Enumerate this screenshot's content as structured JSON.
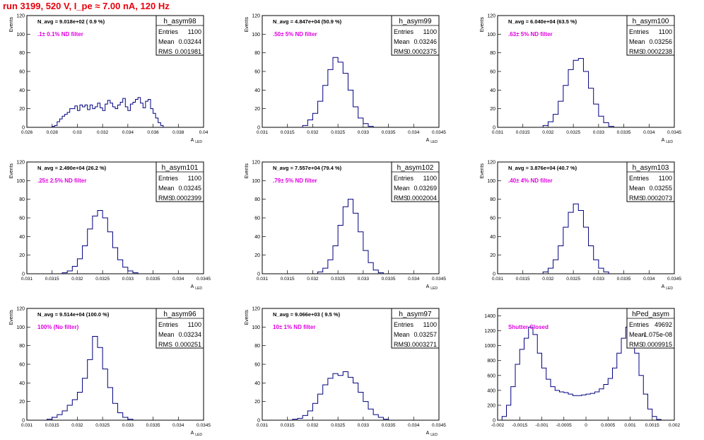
{
  "page": {
    "title": "run 3199,   520 V, I_pe ≈ 7.00 nA, 120 Hz",
    "colors": {
      "title": "#e8000b",
      "annotation": "#e000e0",
      "hist": "#000080",
      "frame": "#000000"
    }
  },
  "chart_data": [
    {
      "type": "bar",
      "name": "h_asym98",
      "navg": "N_avg = 9.018e+02 ( 0.9 %)",
      "filter": ".1± 0.1% ND filter",
      "stats": [
        [
          "Entries",
          "1100"
        ],
        [
          "Mean",
          "0.03244"
        ],
        [
          "RMS",
          "0.001981"
        ]
      ],
      "ylabel": "Events",
      "xlabel": "A_LED",
      "xlim": [
        0.026,
        0.04
      ],
      "ylim": [
        0,
        120
      ],
      "yticks": [
        0,
        20,
        40,
        60,
        80,
        100,
        120
      ],
      "xticks": [
        0.026,
        0.028,
        0.03,
        0.032,
        0.034,
        0.036,
        0.038,
        0.04
      ],
      "xticklabels": [
        "0.026",
        "0.028",
        "0.03",
        "0.032",
        "0.034",
        "0.036",
        "0.038",
        "0.04"
      ],
      "x": [
        0.0281,
        0.0283,
        0.0285,
        0.0287,
        0.0289,
        0.0291,
        0.0293,
        0.0295,
        0.0297,
        0.0299,
        0.0301,
        0.0303,
        0.0305,
        0.0307,
        0.0309,
        0.0311,
        0.0313,
        0.0315,
        0.0317,
        0.0319,
        0.0321,
        0.0323,
        0.0325,
        0.0327,
        0.0329,
        0.0331,
        0.0333,
        0.0335,
        0.0337,
        0.0339,
        0.0341,
        0.0343,
        0.0345,
        0.0347,
        0.0349,
        0.0351,
        0.0353,
        0.0355,
        0.0357,
        0.0359,
        0.0361,
        0.0363,
        0.0365,
        0.0367
      ],
      "values": [
        1,
        2,
        6,
        9,
        12,
        14,
        16,
        20,
        20,
        23,
        18,
        24,
        22,
        24,
        19,
        24,
        20,
        22,
        26,
        21,
        18,
        25,
        29,
        26,
        22,
        20,
        24,
        27,
        31,
        22,
        18,
        25,
        27,
        30,
        32,
        26,
        21,
        28,
        30,
        20,
        15,
        10,
        5,
        2
      ]
    },
    {
      "type": "bar",
      "name": "h_asym99",
      "navg": "N_avg = 4.847e+04 (50.9 %)",
      "filter": ".50± 5% ND filter",
      "stats": [
        [
          "Entries",
          "1100"
        ],
        [
          "Mean",
          "0.03246"
        ],
        [
          "RMS",
          "0.0002375"
        ]
      ],
      "ylabel": "Events",
      "xlabel": "A_LED",
      "xlim": [
        0.031,
        0.0345
      ],
      "ylim": [
        0,
        120
      ],
      "yticks": [
        0,
        20,
        40,
        60,
        80,
        100,
        120
      ],
      "xticks": [
        0.031,
        0.0315,
        0.032,
        0.0325,
        0.033,
        0.0335,
        0.034,
        0.0345
      ],
      "xticklabels": [
        "0.031",
        "0.0315",
        "0.032",
        "0.0325",
        "0.033",
        "0.0335",
        "0.034",
        "0.0345"
      ],
      "x": [
        0.03185,
        0.03195,
        0.03205,
        0.03215,
        0.03225,
        0.03235,
        0.03245,
        0.03255,
        0.03265,
        0.03275,
        0.03285,
        0.03295,
        0.03305,
        0.03315
      ],
      "values": [
        2,
        8,
        15,
        28,
        45,
        62,
        75,
        70,
        58,
        40,
        22,
        10,
        4,
        1
      ]
    },
    {
      "type": "bar",
      "name": "h_asym100",
      "navg": "N_avg = 6.040e+04 (63.5 %)",
      "filter": ".63± 5% ND filter",
      "stats": [
        [
          "Entries",
          "1100"
        ],
        [
          "Mean",
          "0.03256"
        ],
        [
          "RMS",
          "0.0002238"
        ]
      ],
      "ylabel": "Events",
      "xlabel": "A_LED",
      "xlim": [
        0.031,
        0.0345
      ],
      "ylim": [
        0,
        120
      ],
      "yticks": [
        0,
        20,
        40,
        60,
        80,
        100,
        120
      ],
      "xticks": [
        0.031,
        0.0315,
        0.032,
        0.0325,
        0.033,
        0.0335,
        0.034,
        0.0345
      ],
      "xticklabels": [
        "0.031",
        "0.0315",
        "0.032",
        "0.0325",
        "0.033",
        "0.0335",
        "0.034",
        "0.0345"
      ],
      "x": [
        0.03195,
        0.03205,
        0.03215,
        0.03225,
        0.03235,
        0.03245,
        0.03255,
        0.03265,
        0.03275,
        0.03285,
        0.03295,
        0.03305,
        0.03315,
        0.03325
      ],
      "values": [
        2,
        6,
        14,
        28,
        45,
        62,
        72,
        74,
        60,
        42,
        25,
        12,
        5,
        1
      ]
    },
    {
      "type": "bar",
      "name": "h_asym101",
      "navg": "N_avg = 2.490e+04 (26.2 %)",
      "filter": ".25± 2.5% ND filter",
      "stats": [
        [
          "Entries",
          "1100"
        ],
        [
          "Mean",
          "0.03245"
        ],
        [
          "RMS",
          "0.0002399"
        ]
      ],
      "ylabel": "Events",
      "xlabel": "A_LED",
      "xlim": [
        0.031,
        0.0345
      ],
      "ylim": [
        0,
        120
      ],
      "yticks": [
        0,
        20,
        40,
        60,
        80,
        100,
        120
      ],
      "xticks": [
        0.031,
        0.0315,
        0.032,
        0.0325,
        0.033,
        0.0335,
        0.034,
        0.0345
      ],
      "xticklabels": [
        "0.031",
        "0.0315",
        "0.032",
        "0.0325",
        "0.033",
        "0.0335",
        "0.034",
        "0.0345"
      ],
      "x": [
        0.03175,
        0.03185,
        0.03195,
        0.03205,
        0.03215,
        0.03225,
        0.03235,
        0.03245,
        0.03255,
        0.03265,
        0.03275,
        0.03285,
        0.03295,
        0.03305,
        0.03315
      ],
      "values": [
        1,
        3,
        8,
        16,
        30,
        48,
        62,
        68,
        60,
        45,
        28,
        15,
        7,
        3,
        1
      ]
    },
    {
      "type": "bar",
      "name": "h_asym102",
      "navg": "N_avg = 7.557e+04 (79.4 %)",
      "filter": ".79± 5% ND filter",
      "stats": [
        [
          "Entries",
          "1100"
        ],
        [
          "Mean",
          "0.03269"
        ],
        [
          "RMS",
          "0.0002004"
        ]
      ],
      "ylabel": "Events",
      "xlabel": "A_LED",
      "xlim": [
        0.031,
        0.0345
      ],
      "ylim": [
        0,
        120
      ],
      "yticks": [
        0,
        20,
        40,
        60,
        80,
        100,
        120
      ],
      "xticks": [
        0.031,
        0.0315,
        0.032,
        0.0325,
        0.033,
        0.0335,
        0.034,
        0.0345
      ],
      "xticklabels": [
        "0.031",
        "0.0315",
        "0.032",
        "0.0325",
        "0.033",
        "0.0335",
        "0.034",
        "0.0345"
      ],
      "x": [
        0.03215,
        0.03225,
        0.03235,
        0.03245,
        0.03255,
        0.03265,
        0.03275,
        0.03285,
        0.03295,
        0.03305,
        0.03315,
        0.03325,
        0.03335
      ],
      "values": [
        2,
        6,
        15,
        30,
        52,
        72,
        80,
        65,
        45,
        25,
        12,
        4,
        1
      ]
    },
    {
      "type": "bar",
      "name": "h_asym103",
      "navg": "N_avg = 3.876e+04 (40.7 %)",
      "filter": ".40± 4% ND filter",
      "stats": [
        [
          "Entries",
          "1100"
        ],
        [
          "Mean",
          "0.03255"
        ],
        [
          "RMS",
          "0.0002073"
        ]
      ],
      "ylabel": "Events",
      "xlabel": "A_LED",
      "xlim": [
        0.031,
        0.0345
      ],
      "ylim": [
        0,
        120
      ],
      "yticks": [
        0,
        20,
        40,
        60,
        80,
        100,
        120
      ],
      "xticks": [
        0.031,
        0.0315,
        0.032,
        0.0325,
        0.033,
        0.0335,
        0.034,
        0.0345
      ],
      "xticklabels": [
        "0.031",
        "0.0315",
        "0.032",
        "0.0325",
        "0.033",
        "0.0335",
        "0.034",
        "0.0345"
      ],
      "x": [
        0.03195,
        0.03205,
        0.03215,
        0.03225,
        0.03235,
        0.03245,
        0.03255,
        0.03265,
        0.03275,
        0.03285,
        0.03295,
        0.03305,
        0.03315
      ],
      "values": [
        2,
        6,
        15,
        30,
        50,
        66,
        75,
        68,
        50,
        30,
        15,
        6,
        2
      ]
    },
    {
      "type": "bar",
      "name": "h_asym96",
      "navg": "N_avg = 9.514e+04 (100.0 %)",
      "filter": "100% (No filter)",
      "stats": [
        [
          "Entries",
          "1100"
        ],
        [
          "Mean",
          "0.03234"
        ],
        [
          "RMS",
          "0.000251"
        ]
      ],
      "ylabel": "Events",
      "xlabel": "A_LED",
      "xlim": [
        0.031,
        0.0345
      ],
      "ylim": [
        0,
        120
      ],
      "yticks": [
        0,
        20,
        40,
        60,
        80,
        100,
        120
      ],
      "xticks": [
        0.031,
        0.0315,
        0.032,
        0.0325,
        0.033,
        0.0335,
        0.034,
        0.0345
      ],
      "xticklabels": [
        "0.031",
        "0.0315",
        "0.032",
        "0.0325",
        "0.033",
        "0.0335",
        "0.034",
        "0.0345"
      ],
      "x": [
        0.03145,
        0.03155,
        0.03165,
        0.03175,
        0.03185,
        0.03195,
        0.03205,
        0.03215,
        0.03225,
        0.03235,
        0.03245,
        0.03255,
        0.03265,
        0.03275,
        0.03285,
        0.03295,
        0.03305
      ],
      "values": [
        1,
        3,
        6,
        10,
        16,
        22,
        30,
        45,
        65,
        90,
        78,
        55,
        35,
        18,
        8,
        3,
        1
      ]
    },
    {
      "type": "bar",
      "name": "h_asym97",
      "navg": "N_avg = 9.066e+03 ( 9.5 %)",
      "filter": "10± 1% ND filter",
      "stats": [
        [
          "Entries",
          "1100"
        ],
        [
          "Mean",
          "0.03257"
        ],
        [
          "RMS",
          "0.0003271"
        ]
      ],
      "ylabel": "Events",
      "xlabel": "A_LED",
      "xlim": [
        0.031,
        0.0345
      ],
      "ylim": [
        0,
        120
      ],
      "yticks": [
        0,
        20,
        40,
        60,
        80,
        100,
        120
      ],
      "xticks": [
        0.031,
        0.0315,
        0.032,
        0.0325,
        0.033,
        0.0335,
        0.034,
        0.0345
      ],
      "xticklabels": [
        "0.031",
        "0.0315",
        "0.032",
        "0.0325",
        "0.033",
        "0.0335",
        "0.034",
        "0.0345"
      ],
      "x": [
        0.03165,
        0.03175,
        0.03185,
        0.03195,
        0.03205,
        0.03215,
        0.03225,
        0.03235,
        0.03245,
        0.03255,
        0.03265,
        0.03275,
        0.03285,
        0.03295,
        0.03305,
        0.03315,
        0.03325,
        0.03335,
        0.03345
      ],
      "values": [
        1,
        2,
        5,
        10,
        18,
        28,
        38,
        45,
        50,
        48,
        52,
        46,
        40,
        30,
        20,
        12,
        6,
        3,
        1
      ]
    },
    {
      "type": "bar",
      "name": "hPed_asym",
      "navg": "",
      "filter": "Shutter Closed",
      "stats": [
        [
          "Entries",
          "49692"
        ],
        [
          "Mean",
          "-1.075e-08"
        ],
        [
          "RMS",
          "0.0009915"
        ]
      ],
      "ylabel": "",
      "xlabel": "",
      "xlim": [
        -0.002,
        0.002
      ],
      "ylim": [
        0,
        1500
      ],
      "yticks": [
        0,
        200,
        400,
        600,
        800,
        1000,
        1200,
        1400
      ],
      "xticks": [
        -0.002,
        -0.0015,
        -0.001,
        -0.0005,
        0,
        0.0005,
        0.001,
        0.0015,
        0.002
      ],
      "xticklabels": [
        "-0.002",
        "-0.0015",
        "-0.001",
        "-0.0005",
        "0",
        "0.0005",
        "0.001",
        "0.0015",
        "0.002"
      ],
      "x": [
        -0.00185,
        -0.00175,
        -0.00165,
        -0.00155,
        -0.00145,
        -0.00135,
        -0.00125,
        -0.00115,
        -0.00105,
        -0.00095,
        -0.00085,
        -0.00075,
        -0.00065,
        -0.00055,
        -0.00045,
        -0.00035,
        -0.00025,
        -0.00015,
        -5e-05,
        5e-05,
        0.00015,
        0.00025,
        0.00035,
        0.00045,
        0.00055,
        0.00065,
        0.00075,
        0.00085,
        0.00095,
        0.00105,
        0.00115,
        0.00125,
        0.00135,
        0.00145,
        0.00155,
        0.00165
      ],
      "values": [
        50,
        200,
        450,
        750,
        950,
        1100,
        1250,
        1150,
        900,
        700,
        550,
        450,
        400,
        380,
        370,
        350,
        330,
        330,
        340,
        350,
        360,
        380,
        420,
        480,
        560,
        700,
        900,
        1100,
        1250,
        1100,
        900,
        600,
        350,
        150,
        50,
        10
      ]
    }
  ]
}
